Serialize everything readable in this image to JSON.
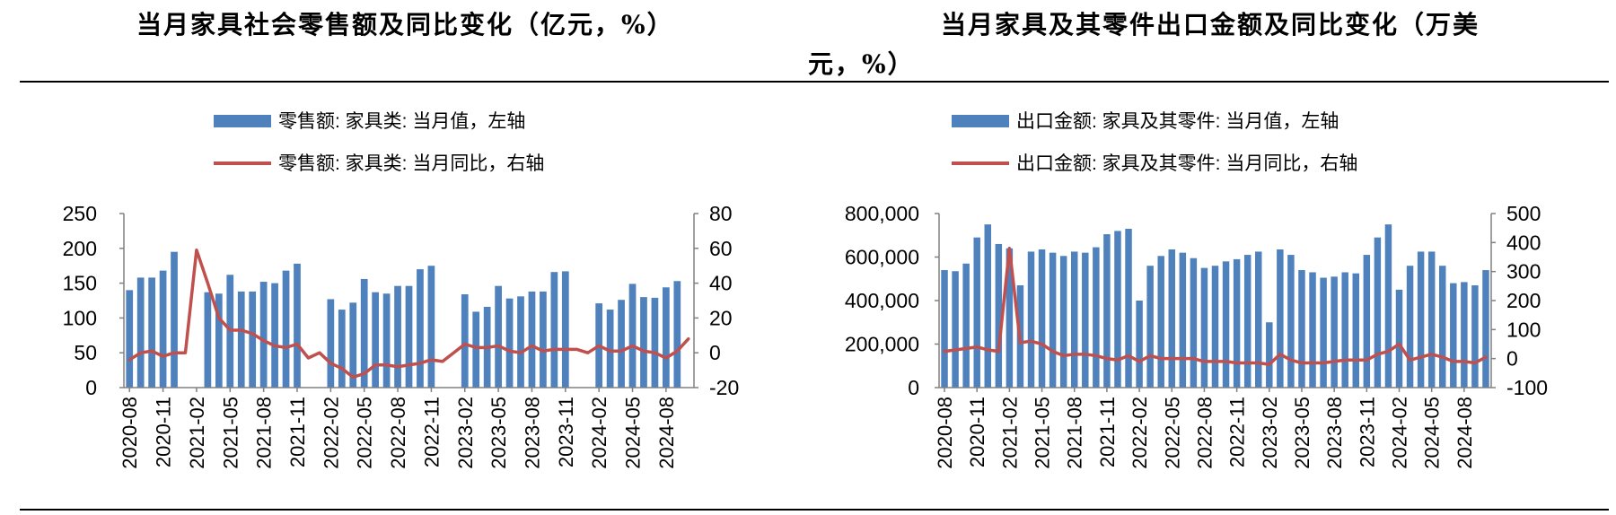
{
  "titles": {
    "left": "当月家具社会零售额及同比变化（亿元，%）",
    "right_line1": "当月家具及其零件出口金额及同比变化（万美",
    "right_line2": "元，%）"
  },
  "colors": {
    "bar": "#4f81bd",
    "line": "#c0504d",
    "axis": "#808080"
  },
  "chart_data": [
    {
      "type": "bar",
      "title": "当月家具社会零售额及同比变化（亿元，%）",
      "legend": [
        "零售额: 家具类: 当月值，左轴",
        "零售额: 家具类: 当月同比，右轴"
      ],
      "legend_placement": "top",
      "grid": false,
      "x": [
        "2020-08",
        "2020-09",
        "2020-10",
        "2020-11",
        "2020-12",
        "2021-01",
        "2021-02",
        "2021-03",
        "2021-04",
        "2021-05",
        "2021-06",
        "2021-07",
        "2021-08",
        "2021-09",
        "2021-10",
        "2021-11",
        "2021-12",
        "2022-01",
        "2022-02",
        "2022-03",
        "2022-04",
        "2022-05",
        "2022-06",
        "2022-07",
        "2022-08",
        "2022-09",
        "2022-10",
        "2022-11",
        "2022-12",
        "2023-01",
        "2023-02",
        "2023-03",
        "2023-04",
        "2023-05",
        "2023-06",
        "2023-07",
        "2023-08",
        "2023-09",
        "2023-10",
        "2023-11",
        "2023-12",
        "2024-01",
        "2024-02",
        "2024-03",
        "2024-04",
        "2024-05",
        "2024-06",
        "2024-07",
        "2024-08",
        "2024-09",
        "2024-10"
      ],
      "x_tick_labels": [
        "2020-08",
        "2020-11",
        "2021-02",
        "2021-05",
        "2021-08",
        "2021-11",
        "2022-02",
        "2022-05",
        "2022-08",
        "2022-11",
        "2023-02",
        "2023-05",
        "2023-08",
        "2023-11",
        "2024-02",
        "2024-05",
        "2024-08"
      ],
      "series": [
        {
          "name": "零售额: 家具类: 当月值，左轴",
          "type": "bar",
          "axis": "left",
          "values": [
            140,
            158,
            158,
            168,
            195,
            null,
            null,
            137,
            135,
            162,
            138,
            138,
            152,
            150,
            168,
            178,
            null,
            null,
            127,
            112,
            122,
            156,
            137,
            135,
            146,
            146,
            170,
            175,
            null,
            null,
            134,
            109,
            116,
            146,
            128,
            131,
            138,
            138,
            166,
            167,
            null,
            null,
            121,
            112,
            126,
            149,
            130,
            129,
            144,
            153,
            null
          ]
        },
        {
          "name": "零售额: 家具类: 当月同比，右轴",
          "type": "line",
          "axis": "right",
          "values": [
            -4,
            0,
            1,
            -2,
            0,
            0,
            59,
            40,
            20,
            13,
            13,
            11,
            7,
            4,
            3,
            5,
            -3,
            0,
            -6,
            -9,
            -14,
            -12,
            -7,
            -7,
            -8,
            -7,
            -6,
            -4,
            -5,
            0,
            5,
            3,
            3,
            4,
            1,
            0,
            4,
            1,
            2,
            2,
            2,
            0,
            4,
            1,
            1,
            4,
            1,
            0,
            -3,
            1,
            8
          ]
        }
      ],
      "y_left": {
        "min": 0,
        "max": 250,
        "ticks": [
          0,
          50,
          100,
          150,
          200,
          250
        ]
      },
      "y_right": {
        "min": -20,
        "max": 80,
        "ticks": [
          -20,
          0,
          20,
          40,
          60,
          80
        ]
      }
    },
    {
      "type": "bar",
      "title": "当月家具及其零件出口金额及同比变化（万美元，%）",
      "legend": [
        "出口金额: 家具及其零件: 当月值，左轴",
        "出口金额: 家具及其零件: 当月同比，右轴"
      ],
      "legend_placement": "top",
      "grid": false,
      "x": [
        "2020-08",
        "2020-09",
        "2020-10",
        "2020-11",
        "2020-12",
        "2021-01",
        "2021-02",
        "2021-03",
        "2021-04",
        "2021-05",
        "2021-06",
        "2021-07",
        "2021-08",
        "2021-09",
        "2021-10",
        "2021-11",
        "2021-12",
        "2022-01",
        "2022-02",
        "2022-03",
        "2022-04",
        "2022-05",
        "2022-06",
        "2022-07",
        "2022-08",
        "2022-09",
        "2022-10",
        "2022-11",
        "2022-12",
        "2023-01",
        "2023-02",
        "2023-03",
        "2023-04",
        "2023-05",
        "2023-06",
        "2023-07",
        "2023-08",
        "2023-09",
        "2023-10",
        "2023-11",
        "2023-12",
        "2024-01",
        "2024-02",
        "2024-03",
        "2024-04",
        "2024-05",
        "2024-06",
        "2024-07",
        "2024-08",
        "2024-09",
        "2024-10"
      ],
      "x_tick_labels": [
        "2020-08",
        "2020-11",
        "2021-02",
        "2021-05",
        "2021-08",
        "2021-11",
        "2022-02",
        "2022-05",
        "2022-08",
        "2022-11",
        "2023-02",
        "2023-05",
        "2023-08",
        "2023-11",
        "2024-02",
        "2024-05",
        "2024-08"
      ],
      "series": [
        {
          "name": "出口金额: 家具及其零件: 当月值，左轴",
          "type": "bar",
          "axis": "left",
          "values": [
            540000,
            535000,
            570000,
            690000,
            750000,
            660000,
            640000,
            470000,
            625000,
            635000,
            620000,
            605000,
            625000,
            620000,
            645000,
            705000,
            720000,
            730000,
            400000,
            560000,
            605000,
            635000,
            620000,
            595000,
            550000,
            560000,
            580000,
            590000,
            610000,
            625000,
            300000,
            635000,
            610000,
            540000,
            530000,
            505000,
            510000,
            530000,
            525000,
            610000,
            690000,
            750000,
            450000,
            560000,
            625000,
            625000,
            560000,
            480000,
            485000,
            470000,
            540000
          ]
        },
        {
          "name": "出口金额: 家具及其零件: 当月同比，右轴",
          "type": "line",
          "axis": "right",
          "values": [
            25,
            30,
            35,
            40,
            30,
            25,
            380,
            55,
            60,
            50,
            25,
            10,
            15,
            15,
            10,
            0,
            -5,
            10,
            -10,
            10,
            0,
            0,
            0,
            0,
            -10,
            -10,
            -10,
            -15,
            -15,
            -15,
            -20,
            15,
            -5,
            -15,
            -15,
            -15,
            -10,
            -5,
            -5,
            -5,
            15,
            25,
            50,
            -5,
            5,
            15,
            5,
            -10,
            -10,
            -15,
            5
          ]
        }
      ],
      "y_left": {
        "min": 0,
        "max": 800000,
        "ticks": [
          0,
          200000,
          400000,
          600000,
          800000
        ],
        "tick_labels": [
          "0",
          "200,000",
          "400,000",
          "600,000",
          "800,000"
        ]
      },
      "y_right": {
        "min": -100,
        "max": 500,
        "ticks": [
          -100,
          0,
          100,
          200,
          300,
          400,
          500
        ]
      }
    }
  ]
}
